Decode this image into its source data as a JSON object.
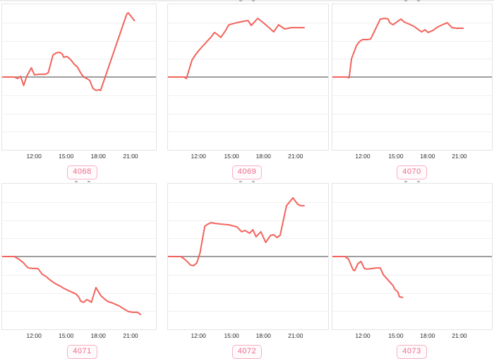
{
  "colors": {
    "line": "#f2635c",
    "zero_line": "#9e9e9e",
    "gridline": "#f0f0f0",
    "plot_border": "#e4e4e4",
    "badge_border": "#f8b0c4",
    "badge_text": "#ee6d8e",
    "tick_text": "#2b2b2b",
    "background": "#ffffff"
  },
  "chart_data": {
    "type": "line",
    "layout": {
      "rows": 2,
      "cols": 3,
      "grid": "on",
      "zero_baseline_centered": true
    },
    "x_tick_labels": [
      "12:00",
      "15:00",
      "18:00",
      "21:00"
    ],
    "units_note": "points are [x = percent of plot width, y = percent of plot half-height above the flat starting baseline (negative = below)]",
    "ylim": [
      -100,
      100
    ],
    "charts": [
      {
        "id": "4068",
        "x_tick_pct": [
          21,
          41.7,
          62.4,
          83.2
        ],
        "has_clipped_title_fragments": false,
        "points": [
          [
            0,
            0
          ],
          [
            8,
            0
          ],
          [
            10,
            -2
          ],
          [
            12,
            1
          ],
          [
            14,
            -12
          ],
          [
            16,
            1
          ],
          [
            19,
            13
          ],
          [
            21,
            3
          ],
          [
            24,
            4
          ],
          [
            28,
            4
          ],
          [
            30,
            6
          ],
          [
            33,
            31
          ],
          [
            35,
            34
          ],
          [
            37,
            35
          ],
          [
            39,
            33
          ],
          [
            40,
            28
          ],
          [
            42,
            29
          ],
          [
            44,
            26
          ],
          [
            47,
            18
          ],
          [
            49,
            14
          ],
          [
            51,
            6
          ],
          [
            53,
            0
          ],
          [
            55,
            -2
          ],
          [
            57,
            -5
          ],
          [
            59,
            -16
          ],
          [
            61,
            -19
          ],
          [
            63,
            -18
          ],
          [
            64,
            -19
          ],
          [
            81,
            89
          ],
          [
            82,
            91
          ],
          [
            86,
            80
          ]
        ]
      },
      {
        "id": "4069",
        "x_tick_pct": [
          19.3,
          39.8,
          59.5,
          79.4
        ],
        "has_clipped_title_fragments": true,
        "points": [
          [
            0,
            0
          ],
          [
            10,
            0
          ],
          [
            11.5,
            -2
          ],
          [
            15,
            24
          ],
          [
            17,
            31
          ],
          [
            19,
            37
          ],
          [
            21,
            42
          ],
          [
            23,
            47
          ],
          [
            25,
            52
          ],
          [
            27,
            57
          ],
          [
            29,
            63
          ],
          [
            31,
            60
          ],
          [
            33,
            56
          ],
          [
            36,
            66
          ],
          [
            38,
            74
          ],
          [
            43,
            77
          ],
          [
            45,
            78
          ],
          [
            47,
            79
          ],
          [
            50,
            80
          ],
          [
            52,
            73
          ],
          [
            56,
            83
          ],
          [
            59,
            78
          ],
          [
            61,
            74
          ],
          [
            66,
            64
          ],
          [
            69,
            74
          ],
          [
            71,
            71
          ],
          [
            73,
            68
          ],
          [
            77,
            70
          ],
          [
            81,
            70
          ],
          [
            85,
            70
          ]
        ]
      },
      {
        "id": "4070",
        "x_tick_pct": [
          19.3,
          39.9,
          59.6,
          79.4
        ],
        "has_clipped_title_fragments": true,
        "points": [
          [
            0,
            0
          ],
          [
            9,
            0
          ],
          [
            10.5,
            -1
          ],
          [
            12,
            26
          ],
          [
            14,
            38
          ],
          [
            15,
            44
          ],
          [
            16.5,
            49
          ],
          [
            18,
            52
          ],
          [
            19,
            53
          ],
          [
            22,
            53
          ],
          [
            24,
            54
          ],
          [
            26,
            63
          ],
          [
            30,
            82
          ],
          [
            33,
            83
          ],
          [
            35,
            82
          ],
          [
            36,
            77
          ],
          [
            38,
            74
          ],
          [
            41,
            79
          ],
          [
            43,
            82
          ],
          [
            45,
            78
          ],
          [
            48,
            75
          ],
          [
            51,
            72
          ],
          [
            54,
            67
          ],
          [
            56,
            64
          ],
          [
            58,
            67
          ],
          [
            60,
            63
          ],
          [
            63,
            66
          ],
          [
            66,
            71
          ],
          [
            70,
            75
          ],
          [
            72,
            77
          ],
          [
            75,
            70
          ],
          [
            78,
            69
          ],
          [
            82,
            69
          ]
        ]
      },
      {
        "id": "4071",
        "x_tick_pct": [
          21,
          41.7,
          62.4,
          83.2
        ],
        "has_clipped_title_fragments": true,
        "points": [
          [
            0,
            0
          ],
          [
            8,
            0
          ],
          [
            11,
            -4
          ],
          [
            14,
            -9
          ],
          [
            15,
            -12
          ],
          [
            17,
            -16
          ],
          [
            20,
            -17
          ],
          [
            23,
            -17
          ],
          [
            24,
            -19
          ],
          [
            26,
            -25
          ],
          [
            29,
            -29
          ],
          [
            31,
            -33
          ],
          [
            33,
            -36
          ],
          [
            35,
            -39
          ],
          [
            38,
            -42
          ],
          [
            40,
            -45
          ],
          [
            42,
            -47
          ],
          [
            45,
            -50
          ],
          [
            48,
            -53
          ],
          [
            50,
            -58
          ],
          [
            51,
            -63
          ],
          [
            53,
            -65
          ],
          [
            55,
            -61
          ],
          [
            57,
            -63
          ],
          [
            58,
            -65
          ],
          [
            61,
            -44
          ],
          [
            64,
            -55
          ],
          [
            67,
            -61
          ],
          [
            69,
            -64
          ],
          [
            72,
            -66
          ],
          [
            74,
            -68
          ],
          [
            76,
            -70
          ],
          [
            79,
            -74
          ],
          [
            82,
            -78
          ],
          [
            85,
            -79
          ],
          [
            88,
            -79
          ],
          [
            90,
            -82
          ]
        ]
      },
      {
        "id": "4072",
        "x_tick_pct": [
          19.3,
          39.8,
          59.5,
          79.4
        ],
        "has_clipped_title_fragments": true,
        "points": [
          [
            0,
            0
          ],
          [
            8,
            0
          ],
          [
            10,
            -3
          ],
          [
            12,
            -7
          ],
          [
            14,
            -12
          ],
          [
            16,
            -13
          ],
          [
            18,
            -9
          ],
          [
            19,
            -2
          ],
          [
            20,
            5
          ],
          [
            23,
            43
          ],
          [
            25,
            46
          ],
          [
            27,
            48
          ],
          [
            29,
            47
          ],
          [
            33,
            46
          ],
          [
            38,
            45
          ],
          [
            43,
            42
          ],
          [
            46,
            35
          ],
          [
            48,
            37
          ],
          [
            51,
            33
          ],
          [
            53,
            38
          ],
          [
            55,
            28
          ],
          [
            58,
            35
          ],
          [
            61,
            20
          ],
          [
            64,
            30
          ],
          [
            66,
            31
          ],
          [
            68,
            27
          ],
          [
            70,
            30
          ],
          [
            74,
            72
          ],
          [
            78,
            83
          ],
          [
            81,
            74
          ],
          [
            83,
            72
          ],
          [
            85,
            72
          ]
        ]
      },
      {
        "id": "4073",
        "x_tick_pct": [
          19.3,
          39.9,
          59.6,
          79.4
        ],
        "has_clipped_title_fragments": true,
        "points": [
          [
            0,
            0
          ],
          [
            8,
            0
          ],
          [
            9,
            -2
          ],
          [
            10,
            -3
          ],
          [
            13,
            -19
          ],
          [
            14,
            -20
          ],
          [
            16,
            -10
          ],
          [
            18,
            -7
          ],
          [
            20,
            -17
          ],
          [
            22,
            -18
          ],
          [
            25,
            -17
          ],
          [
            28,
            -16
          ],
          [
            30,
            -16
          ],
          [
            32,
            -26
          ],
          [
            34,
            -31
          ],
          [
            36,
            -36
          ],
          [
            38,
            -41
          ],
          [
            39,
            -46
          ],
          [
            41,
            -50
          ],
          [
            42,
            -57
          ],
          [
            44,
            -58
          ]
        ]
      }
    ]
  }
}
